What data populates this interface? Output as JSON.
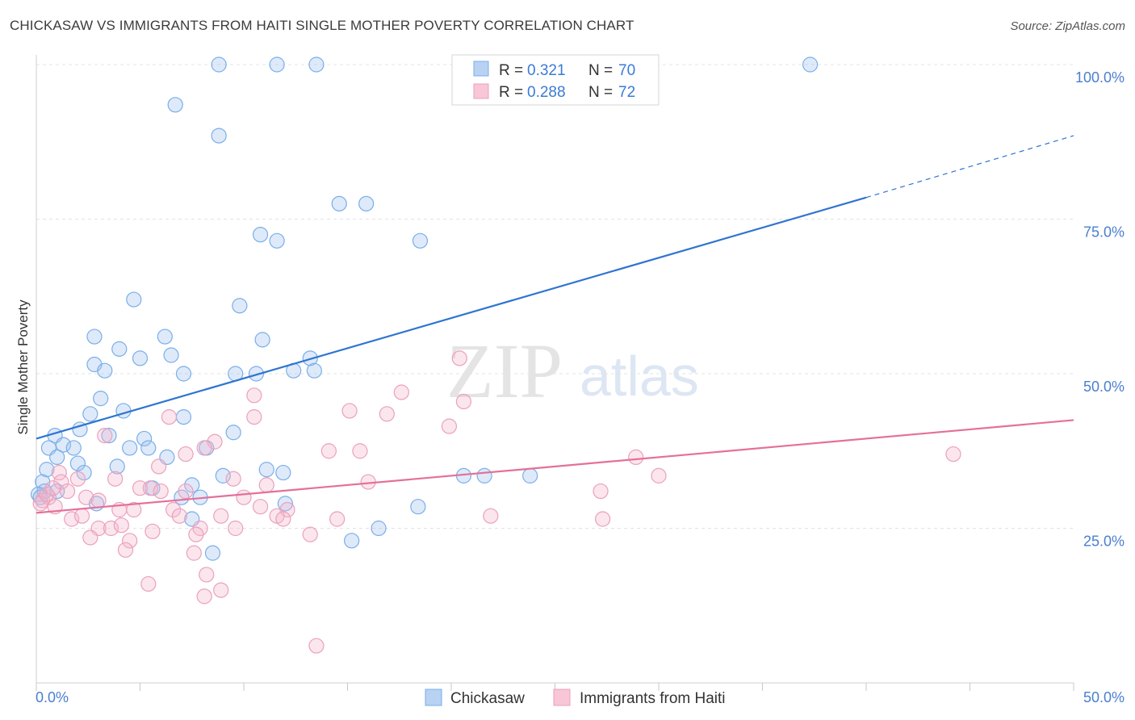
{
  "title": "CHICKASAW VS IMMIGRANTS FROM HAITI SINGLE MOTHER POVERTY CORRELATION CHART",
  "source": "Source: ZipAtlas.com",
  "watermark": {
    "zip": "ZIP",
    "atlas": "atlas"
  },
  "chart_data": {
    "type": "scatter",
    "xlabel": "",
    "ylabel": "Single Mother Poverty",
    "xlim": [
      0,
      50
    ],
    "ylim": [
      0,
      100
    ],
    "x_tick_labels": [
      {
        "value": 0,
        "label": "0.0%"
      },
      {
        "value": 50,
        "label": "50.0%"
      }
    ],
    "y_tick_labels": [
      {
        "value": 25,
        "label": "25.0%"
      },
      {
        "value": 50,
        "label": "50.0%"
      },
      {
        "value": 75,
        "label": "75.0%"
      },
      {
        "value": 100,
        "label": "100.0%"
      }
    ],
    "grid": "horizontal-dashed",
    "legend_placement": "top-center",
    "series": [
      {
        "name": "Chickasaw",
        "color": "#7aaee8",
        "fill": "rgba(160,196,240,0.35)",
        "r_label": "R =",
        "r_value": "0.321",
        "n_label": "N =",
        "n_value": "70",
        "trend": {
          "x0": 0,
          "y0": 39.5,
          "x1": 40,
          "y1": 78.5,
          "dash_to_x": 50,
          "dash_to_y": 88.5,
          "color": "#2f74d0"
        },
        "points": [
          [
            8.8,
            100
          ],
          [
            11.6,
            100
          ],
          [
            13.5,
            100
          ],
          [
            37.3,
            100
          ],
          [
            6.7,
            93.5
          ],
          [
            8.8,
            88.5
          ],
          [
            14.6,
            77.5
          ],
          [
            15.9,
            77.5
          ],
          [
            10.8,
            72.5
          ],
          [
            11.6,
            71.5
          ],
          [
            18.5,
            71.5
          ],
          [
            4.7,
            62
          ],
          [
            9.8,
            61
          ],
          [
            2.8,
            56
          ],
          [
            6.2,
            56
          ],
          [
            10.9,
            55.5
          ],
          [
            4.0,
            54
          ],
          [
            5.0,
            52.5
          ],
          [
            6.5,
            53
          ],
          [
            13.2,
            52.5
          ],
          [
            2.8,
            51.5
          ],
          [
            3.3,
            50.5
          ],
          [
            7.1,
            50
          ],
          [
            9.6,
            50
          ],
          [
            10.6,
            50
          ],
          [
            12.4,
            50.5
          ],
          [
            13.4,
            50.5
          ],
          [
            3.1,
            46
          ],
          [
            4.2,
            44
          ],
          [
            2.6,
            43.5
          ],
          [
            7.1,
            43
          ],
          [
            0.9,
            40
          ],
          [
            2.1,
            41
          ],
          [
            9.5,
            40.5
          ],
          [
            3.5,
            40
          ],
          [
            5.2,
            39.5
          ],
          [
            0.6,
            38
          ],
          [
            1.3,
            38.5
          ],
          [
            1.8,
            38
          ],
          [
            4.5,
            38
          ],
          [
            5.4,
            38
          ],
          [
            8.2,
            38
          ],
          [
            1.0,
            36.5
          ],
          [
            2.0,
            35.5
          ],
          [
            6.3,
            36.5
          ],
          [
            3.9,
            35
          ],
          [
            0.5,
            34.5
          ],
          [
            2.3,
            34
          ],
          [
            9.0,
            33.5
          ],
          [
            11.1,
            34.5
          ],
          [
            11.9,
            34
          ],
          [
            20.6,
            33.5
          ],
          [
            21.6,
            33.5
          ],
          [
            23.8,
            33.5
          ],
          [
            0.3,
            32.5
          ],
          [
            0.4,
            31
          ],
          [
            1.0,
            31
          ],
          [
            5.6,
            31.5
          ],
          [
            7.5,
            32
          ],
          [
            7.0,
            30
          ],
          [
            7.9,
            30
          ],
          [
            12.0,
            29
          ],
          [
            2.9,
            29
          ],
          [
            7.5,
            26.5
          ],
          [
            18.4,
            28.5
          ],
          [
            8.5,
            21
          ],
          [
            15.2,
            23
          ],
          [
            16.5,
            25
          ],
          [
            0.1,
            30.5
          ],
          [
            0.2,
            30
          ]
        ]
      },
      {
        "name": "Immigrants from Haiti",
        "color": "#eba0bd",
        "fill": "rgba(244,182,204,0.35)",
        "r_label": "R =",
        "r_value": "0.288",
        "n_label": "N =",
        "n_value": "72",
        "trend": {
          "x0": 0,
          "y0": 27.5,
          "x1": 50,
          "y1": 42.5,
          "color": "#e4709a"
        },
        "points": [
          [
            20.4,
            52.5
          ],
          [
            10.5,
            46.5
          ],
          [
            17.6,
            47
          ],
          [
            20.6,
            45.5
          ],
          [
            15.1,
            44
          ],
          [
            16.9,
            43.5
          ],
          [
            6.4,
            43
          ],
          [
            10.5,
            43
          ],
          [
            19.9,
            41.5
          ],
          [
            3.3,
            40
          ],
          [
            8.6,
            39
          ],
          [
            14.1,
            37.5
          ],
          [
            15.6,
            37.5
          ],
          [
            7.2,
            37
          ],
          [
            8.1,
            38
          ],
          [
            5.9,
            35
          ],
          [
            28.9,
            36.5
          ],
          [
            44.2,
            37
          ],
          [
            30.0,
            33.5
          ],
          [
            1.1,
            34
          ],
          [
            2.0,
            33
          ],
          [
            9.5,
            33
          ],
          [
            16.0,
            32.5
          ],
          [
            3.8,
            33
          ],
          [
            1.2,
            32.5
          ],
          [
            5.0,
            31.5
          ],
          [
            5.5,
            31.5
          ],
          [
            6.0,
            31
          ],
          [
            7.2,
            31
          ],
          [
            11.1,
            32
          ],
          [
            1.5,
            31
          ],
          [
            0.3,
            29.5
          ],
          [
            0.6,
            30
          ],
          [
            0.9,
            28.5
          ],
          [
            2.4,
            30
          ],
          [
            3.0,
            29.5
          ],
          [
            10.0,
            30
          ],
          [
            27.2,
            31
          ],
          [
            4.0,
            28
          ],
          [
            4.7,
            28
          ],
          [
            6.6,
            28
          ],
          [
            8.9,
            27
          ],
          [
            10.8,
            28.5
          ],
          [
            12.1,
            28
          ],
          [
            1.7,
            26.5
          ],
          [
            2.2,
            27
          ],
          [
            6.9,
            27
          ],
          [
            11.6,
            27
          ],
          [
            11.9,
            26.5
          ],
          [
            14.5,
            26.5
          ],
          [
            21.9,
            27
          ],
          [
            27.3,
            26.5
          ],
          [
            3.0,
            25
          ],
          [
            3.6,
            25
          ],
          [
            4.1,
            25.5
          ],
          [
            7.9,
            25
          ],
          [
            9.6,
            25
          ],
          [
            5.6,
            24.5
          ],
          [
            7.7,
            24
          ],
          [
            13.2,
            24
          ],
          [
            2.6,
            23.5
          ],
          [
            4.5,
            23
          ],
          [
            4.3,
            21.5
          ],
          [
            7.6,
            21
          ],
          [
            8.2,
            17.5
          ],
          [
            5.4,
            16
          ],
          [
            8.9,
            15
          ],
          [
            8.1,
            14
          ],
          [
            13.5,
            6
          ],
          [
            0.2,
            29
          ],
          [
            0.5,
            30.5
          ],
          [
            0.8,
            31.5
          ]
        ]
      }
    ]
  }
}
